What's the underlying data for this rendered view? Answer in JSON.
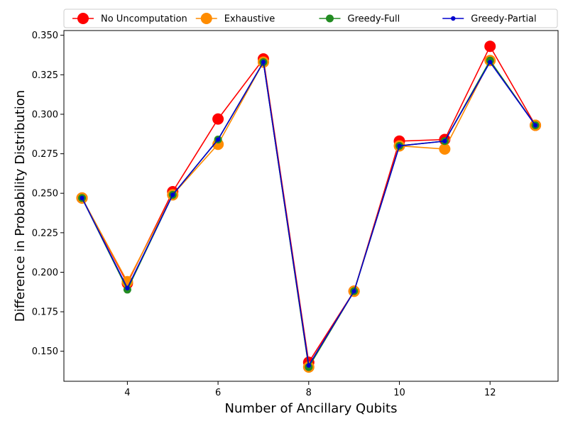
{
  "chart_data": {
    "type": "line",
    "xlabel": "Number of Ancillary Qubits",
    "ylabel": "Difference in Probability Distribution",
    "xlim": [
      2.6,
      13.5
    ],
    "ylim": [
      0.131,
      0.353
    ],
    "x_ticks": [
      4,
      6,
      8,
      10,
      12
    ],
    "y_ticks": [
      0.15,
      0.175,
      0.2,
      0.225,
      0.25,
      0.275,
      0.3,
      0.325,
      0.35
    ],
    "x_tick_labels": [
      "4",
      "6",
      "8",
      "10",
      "12"
    ],
    "y_tick_labels": [
      "0.150",
      "0.175",
      "0.200",
      "0.225",
      "0.250",
      "0.275",
      "0.300",
      "0.325",
      "0.350"
    ],
    "grid": false,
    "legend_position": "top",
    "x": [
      3,
      4,
      5,
      6,
      7,
      8,
      9,
      10,
      11,
      12,
      13
    ],
    "series": [
      {
        "name": "No Uncomputation",
        "color": "#ff0000",
        "marker_size": "large",
        "values": [
          0.247,
          0.193,
          0.251,
          0.297,
          0.335,
          0.143,
          0.188,
          0.283,
          0.284,
          0.343,
          0.293
        ]
      },
      {
        "name": "Exhaustive",
        "color": "#ff8c00",
        "marker_size": "large",
        "values": [
          0.247,
          0.194,
          0.249,
          0.281,
          0.333,
          0.14,
          0.188,
          0.28,
          0.278,
          0.334,
          0.293
        ]
      },
      {
        "name": "Greedy-Full",
        "color": "#228b22",
        "marker_size": "medium",
        "values": [
          0.247,
          0.189,
          0.249,
          0.284,
          0.333,
          0.14,
          0.188,
          0.28,
          0.283,
          0.334,
          0.293
        ]
      },
      {
        "name": "Greedy-Partial",
        "color": "#0000cd",
        "marker_size": "small",
        "values": [
          0.247,
          0.19,
          0.249,
          0.284,
          0.333,
          0.141,
          0.188,
          0.28,
          0.283,
          0.333,
          0.293
        ]
      }
    ]
  }
}
